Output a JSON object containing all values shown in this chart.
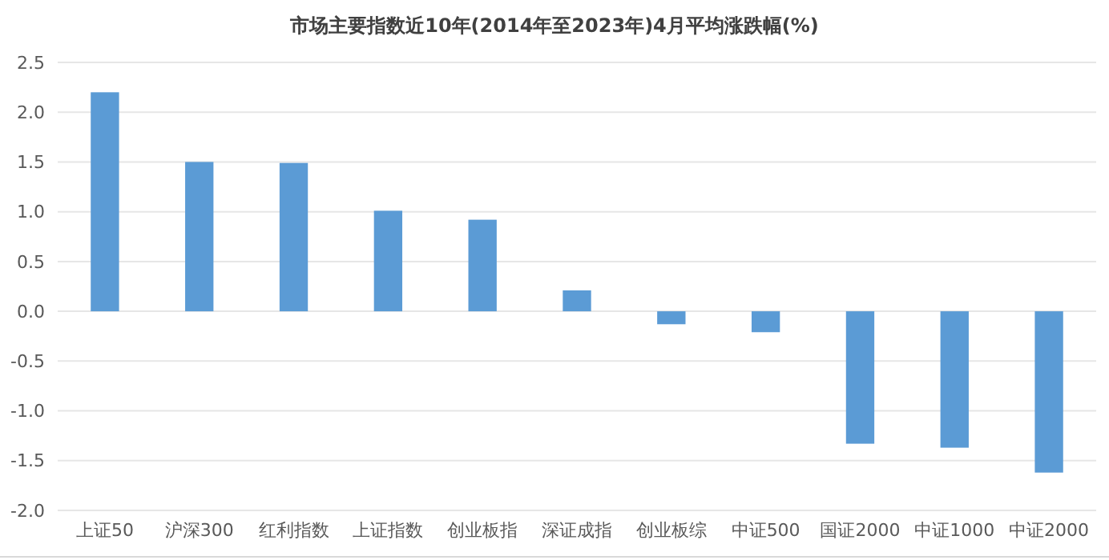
{
  "chart_data": {
    "type": "bar",
    "title": "市场主要指数近10年(2014年至2023年)4月平均涨跌幅(%)",
    "categories": [
      "上证50",
      "沪深300",
      "红利指数",
      "上证指数",
      "创业板指",
      "深证成指",
      "创业板综",
      "中证500",
      "国证2000",
      "中证1000",
      "中证2000"
    ],
    "values": [
      2.2,
      1.5,
      1.49,
      1.01,
      0.92,
      0.21,
      -0.13,
      -0.21,
      -1.33,
      -1.37,
      -1.62
    ],
    "color": "#5b9bd5",
    "ylim": [
      -2.0,
      2.5
    ],
    "yticks": [
      {
        "value": -2,
        "label": "-2.0"
      },
      {
        "value": -1.5,
        "label": "-1.5"
      },
      {
        "value": -1,
        "label": "-1.0"
      },
      {
        "value": -0.5,
        "label": "-0.5"
      },
      {
        "value": 0,
        "label": "0.0"
      },
      {
        "value": 0.5,
        "label": "0.5"
      },
      {
        "value": 1,
        "label": "1.0"
      },
      {
        "value": 1.5,
        "label": "1.5"
      },
      {
        "value": 2,
        "label": "2.0"
      },
      {
        "value": 2.5,
        "label": "2.5"
      }
    ],
    "grid": true
  }
}
